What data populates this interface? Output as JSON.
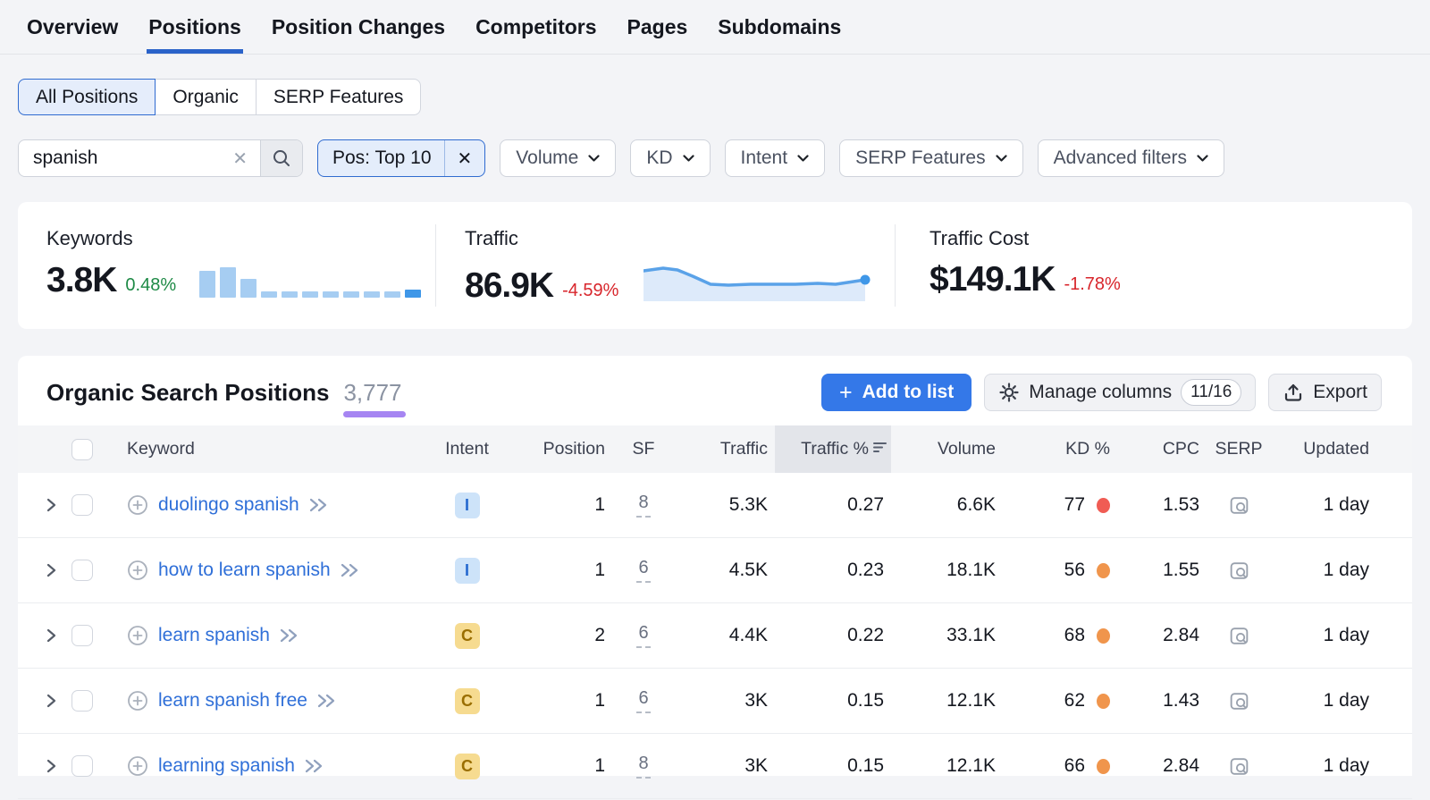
{
  "nav": {
    "tabs": [
      {
        "label": "Overview",
        "active": false
      },
      {
        "label": "Positions",
        "active": true
      },
      {
        "label": "Position Changes",
        "active": false
      },
      {
        "label": "Competitors",
        "active": false
      },
      {
        "label": "Pages",
        "active": false
      },
      {
        "label": "Subdomains",
        "active": false
      }
    ]
  },
  "view_switcher": {
    "options": [
      {
        "label": "All Positions",
        "active": true
      },
      {
        "label": "Organic",
        "active": false
      },
      {
        "label": "SERP Features",
        "active": false
      }
    ]
  },
  "filter_bar": {
    "search": {
      "value": "spanish",
      "clear_glyph": "✕"
    },
    "position_chip": {
      "label": "Pos: Top 10",
      "close_glyph": "✕"
    },
    "dropdowns": [
      "Volume",
      "KD",
      "Intent",
      "SERP Features",
      "Advanced filters"
    ]
  },
  "stats": {
    "keywords": {
      "label": "Keywords",
      "value": "3.8K",
      "change": "0.48%",
      "trend": "up",
      "bars": [
        30,
        34,
        21,
        7,
        7,
        7,
        7,
        7,
        7,
        7,
        9
      ],
      "bar_color": "#a6cdf2",
      "bar_last_color": "#3f97e8"
    },
    "traffic": {
      "label": "Traffic",
      "value": "86.9K",
      "change": "-4.59%",
      "trend": "down",
      "sparkline": [
        [
          0,
          10
        ],
        [
          22,
          7
        ],
        [
          38,
          9
        ],
        [
          55,
          16
        ],
        [
          75,
          25
        ],
        [
          95,
          26
        ],
        [
          120,
          25
        ],
        [
          145,
          25
        ],
        [
          170,
          25
        ],
        [
          195,
          24
        ],
        [
          215,
          25
        ],
        [
          235,
          22
        ],
        [
          248,
          20
        ]
      ],
      "line_color": "#5aa2e8",
      "fill_color": "#ddeafa",
      "dot_color": "#3f97e8"
    },
    "traffic_cost": {
      "label": "Traffic Cost",
      "value": "$149.1K",
      "change": "-1.78%",
      "trend": "down"
    }
  },
  "positions_panel": {
    "title": "Organic Search Positions",
    "count": "3,777",
    "add_to_list": {
      "label": "Add to list",
      "plus_glyph": "+"
    },
    "manage_columns": {
      "label": "Manage columns",
      "badge": "11/16"
    },
    "export": {
      "label": "Export"
    },
    "columns": [
      {
        "key": "keyword",
        "label": "Keyword"
      },
      {
        "key": "intent",
        "label": "Intent"
      },
      {
        "key": "position",
        "label": "Position"
      },
      {
        "key": "sf",
        "label": "SF"
      },
      {
        "key": "traffic",
        "label": "Traffic"
      },
      {
        "key": "traffic_pct",
        "label": "Traffic %",
        "sorted": true
      },
      {
        "key": "volume",
        "label": "Volume"
      },
      {
        "key": "kd",
        "label": "KD %"
      },
      {
        "key": "cpc",
        "label": "CPC"
      },
      {
        "key": "serp",
        "label": "SERP"
      },
      {
        "key": "updated",
        "label": "Updated"
      }
    ],
    "rows": [
      {
        "keyword": "duolingo spanish",
        "intent": "I",
        "position": "1",
        "sf": "8",
        "traffic": "5.3K",
        "traffic_pct": "0.27",
        "volume": "6.6K",
        "kd": "77",
        "kd_color": "#f05c54",
        "cpc": "1.53",
        "updated": "1 day"
      },
      {
        "keyword": "how to learn spanish",
        "intent": "I",
        "position": "1",
        "sf": "6",
        "traffic": "4.5K",
        "traffic_pct": "0.23",
        "volume": "18.1K",
        "kd": "56",
        "kd_color": "#f0954c",
        "cpc": "1.55",
        "updated": "1 day"
      },
      {
        "keyword": "learn spanish",
        "intent": "C",
        "position": "2",
        "sf": "6",
        "traffic": "4.4K",
        "traffic_pct": "0.22",
        "volume": "33.1K",
        "kd": "68",
        "kd_color": "#f0954c",
        "cpc": "2.84",
        "updated": "1 day"
      },
      {
        "keyword": "learn spanish free",
        "intent": "C",
        "position": "1",
        "sf": "6",
        "traffic": "3K",
        "traffic_pct": "0.15",
        "volume": "12.1K",
        "kd": "62",
        "kd_color": "#f0954c",
        "cpc": "1.43",
        "updated": "1 day"
      },
      {
        "keyword": "learning spanish",
        "intent": "C",
        "position": "1",
        "sf": "8",
        "traffic": "3K",
        "traffic_pct": "0.15",
        "volume": "12.1K",
        "kd": "66",
        "kd_color": "#f0954c",
        "cpc": "2.84",
        "updated": "1 day"
      }
    ]
  },
  "colors": {
    "accent_blue": "#3478e8",
    "link_blue": "#2f6fd8",
    "active_tab_underline": "#2a62c9",
    "positive_green": "#1e8a46",
    "negative_red": "#d8262c",
    "count_underline_purple": "#a685f2",
    "kd_hard_red": "#f05c54",
    "kd_medium_orange": "#f0954c",
    "intent_informational_bg": "#cde3f9",
    "intent_informational_text": "#2468cf",
    "intent_commercial_bg": "#f6db90",
    "intent_commercial_text": "#9a6e00",
    "chip_bg": "#e4edfb",
    "chip_border": "#2f6bd0"
  }
}
